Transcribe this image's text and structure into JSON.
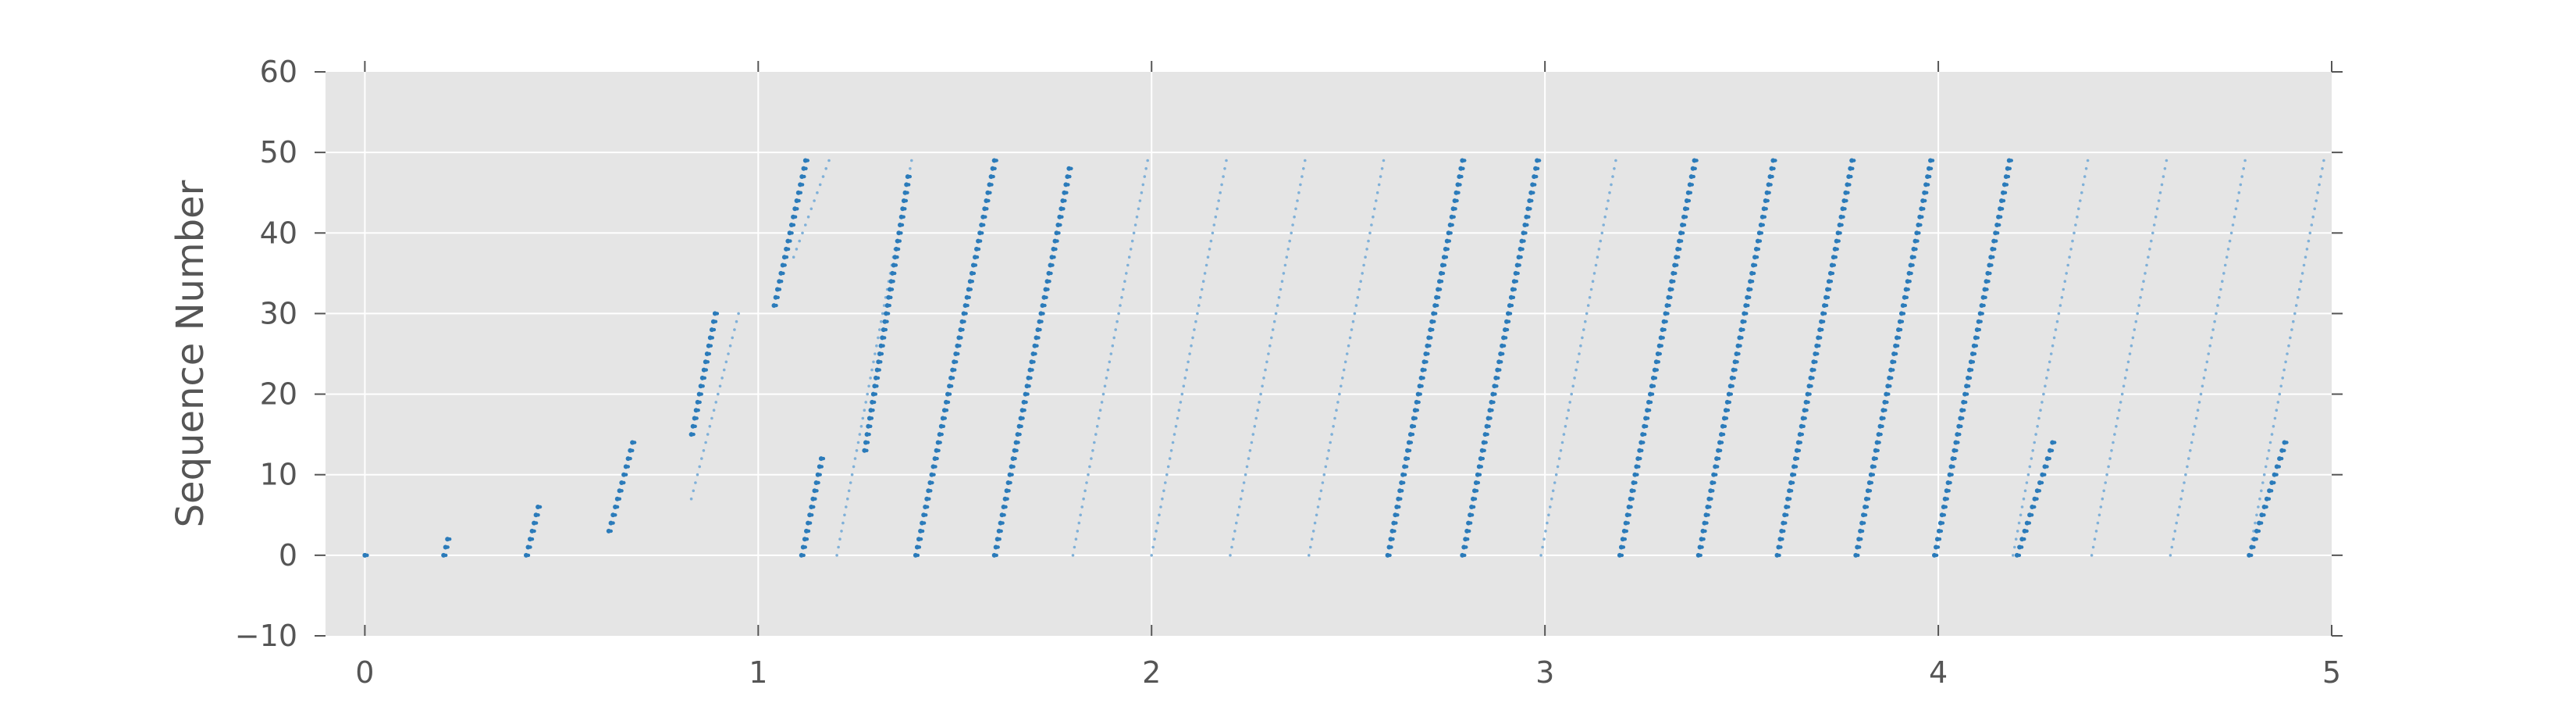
{
  "chart_data": {
    "type": "scatter",
    "title": "",
    "xlabel": "",
    "ylabel": "Sequence Number",
    "xlim": [
      -0.1,
      5.0
    ],
    "ylim": [
      -10,
      60
    ],
    "xticks": [
      0,
      1,
      2,
      3,
      4,
      5
    ],
    "yticks": [
      60,
      50,
      40,
      30,
      20,
      10,
      0,
      -10
    ],
    "xtick_labels": [
      "0",
      "1",
      "2",
      "3",
      "4",
      "5"
    ],
    "ytick_labels": [
      "60",
      "50",
      "40",
      "30",
      "20",
      "10",
      "0",
      "−10"
    ],
    "grid": true,
    "background": "#e5e5e5",
    "point_color": "#2b7bba",
    "point_color_light": "#7fb0d8",
    "bursts": [
      {
        "x0": 0.0,
        "y0": 0,
        "x1": 0.0,
        "y1": 0,
        "weight": "bold"
      },
      {
        "x0": 0.2,
        "y0": 0,
        "x1": 0.21,
        "y1": 2,
        "weight": "bold"
      },
      {
        "x0": 0.41,
        "y0": 0,
        "x1": 0.44,
        "y1": 6,
        "weight": "bold"
      },
      {
        "x0": 0.62,
        "y0": 3,
        "x1": 0.68,
        "y1": 14,
        "weight": "bold"
      },
      {
        "x0": 0.83,
        "y0": 7,
        "x1": 0.95,
        "y1": 30,
        "weight": "light"
      },
      {
        "x0": 0.83,
        "y0": 15,
        "x1": 0.89,
        "y1": 30,
        "weight": "bold"
      },
      {
        "x0": 1.04,
        "y0": 31,
        "x1": 1.12,
        "y1": 49,
        "weight": "bold"
      },
      {
        "x0": 1.09,
        "y0": 37,
        "x1": 1.18,
        "y1": 49,
        "weight": "light"
      },
      {
        "x0": 1.11,
        "y0": 0,
        "x1": 1.16,
        "y1": 12,
        "weight": "bold"
      },
      {
        "x0": 1.2,
        "y0": 0,
        "x1": 1.39,
        "y1": 49,
        "weight": "light"
      },
      {
        "x0": 1.27,
        "y0": 13,
        "x1": 1.38,
        "y1": 47,
        "weight": "bold"
      },
      {
        "x0": 1.4,
        "y0": 0,
        "x1": 1.6,
        "y1": 49,
        "weight": "bold"
      },
      {
        "x0": 1.6,
        "y0": 0,
        "x1": 1.79,
        "y1": 48,
        "weight": "bold"
      },
      {
        "x0": 1.8,
        "y0": 0,
        "x1": 1.99,
        "y1": 49,
        "weight": "light"
      },
      {
        "x0": 2.0,
        "y0": 0,
        "x1": 2.19,
        "y1": 49,
        "weight": "light"
      },
      {
        "x0": 2.2,
        "y0": 0,
        "x1": 2.39,
        "y1": 49,
        "weight": "light"
      },
      {
        "x0": 2.4,
        "y0": 0,
        "x1": 2.59,
        "y1": 49,
        "weight": "light"
      },
      {
        "x0": 2.6,
        "y0": 0,
        "x1": 2.79,
        "y1": 49,
        "weight": "bold"
      },
      {
        "x0": 2.79,
        "y0": 0,
        "x1": 2.98,
        "y1": 49,
        "weight": "bold"
      },
      {
        "x0": 2.99,
        "y0": 0,
        "x1": 3.18,
        "y1": 49,
        "weight": "light"
      },
      {
        "x0": 3.19,
        "y0": 0,
        "x1": 3.38,
        "y1": 49,
        "weight": "bold"
      },
      {
        "x0": 3.39,
        "y0": 0,
        "x1": 3.58,
        "y1": 49,
        "weight": "bold"
      },
      {
        "x0": 3.59,
        "y0": 0,
        "x1": 3.78,
        "y1": 49,
        "weight": "bold"
      },
      {
        "x0": 3.79,
        "y0": 0,
        "x1": 3.98,
        "y1": 49,
        "weight": "bold"
      },
      {
        "x0": 3.99,
        "y0": 0,
        "x1": 4.18,
        "y1": 49,
        "weight": "bold"
      },
      {
        "x0": 4.19,
        "y0": 0,
        "x1": 4.38,
        "y1": 49,
        "weight": "light"
      },
      {
        "x0": 4.2,
        "y0": 0,
        "x1": 4.29,
        "y1": 14,
        "weight": "bold"
      },
      {
        "x0": 4.39,
        "y0": 0,
        "x1": 4.58,
        "y1": 49,
        "weight": "light"
      },
      {
        "x0": 4.59,
        "y0": 0,
        "x1": 4.78,
        "y1": 49,
        "weight": "light"
      },
      {
        "x0": 4.79,
        "y0": 0,
        "x1": 4.98,
        "y1": 49,
        "weight": "light"
      },
      {
        "x0": 4.79,
        "y0": 0,
        "x1": 4.88,
        "y1": 14,
        "weight": "bold"
      }
    ]
  }
}
